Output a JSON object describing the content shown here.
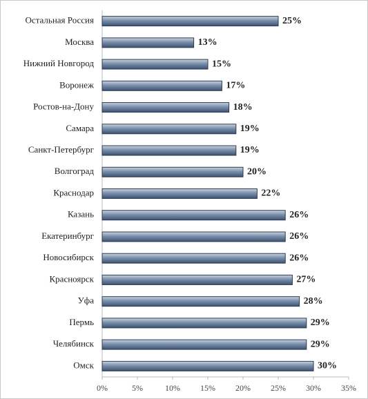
{
  "chart_data": {
    "type": "hbar",
    "categories": [
      "Остальная Россия",
      "Москва",
      "Нижний Новгород",
      "Воронеж",
      "Ростов-на-Дону",
      "Самара",
      "Санкт-Петербург",
      "Волгоград",
      "Краснодар",
      "Казань",
      "Екатеринбург",
      "Новосибирск",
      "Красноярск",
      "Уфа",
      "Пермь",
      "Челябинск",
      "Омск"
    ],
    "values": [
      25,
      13,
      15,
      17,
      18,
      19,
      19,
      20,
      22,
      26,
      26,
      26,
      27,
      28,
      29,
      29,
      30
    ],
    "value_labels": [
      "25%",
      "13%",
      "15%",
      "17%",
      "18%",
      "19%",
      "19%",
      "20%",
      "22%",
      "26%",
      "26%",
      "26%",
      "27%",
      "28%",
      "29%",
      "29%",
      "30%"
    ],
    "color": "#4f6b8f",
    "xlim": [
      0,
      35
    ],
    "xticks": [
      {
        "value": 0,
        "label": "0%"
      },
      {
        "value": 5,
        "label": "5%"
      },
      {
        "value": 10,
        "label": "10%"
      },
      {
        "value": 15,
        "label": "15%"
      },
      {
        "value": 20,
        "label": "20%"
      },
      {
        "value": 25,
        "label": "25%"
      },
      {
        "value": 30,
        "label": "30%"
      },
      {
        "value": 35,
        "label": "35%"
      }
    ]
  }
}
